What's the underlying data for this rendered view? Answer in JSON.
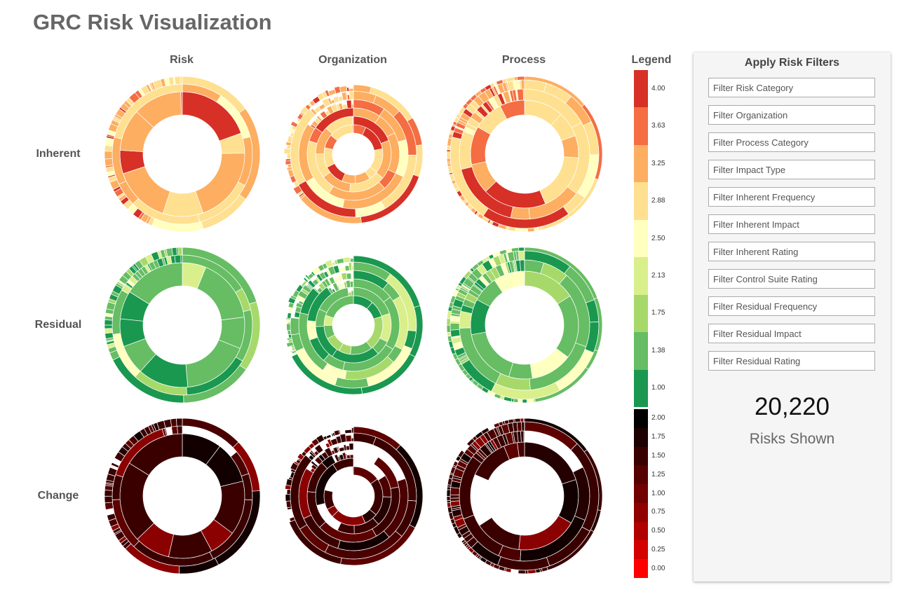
{
  "title": "GRC Risk Visualization",
  "columns": [
    {
      "label": "Risk"
    },
    {
      "label": "Organization"
    },
    {
      "label": "Process"
    }
  ],
  "rows": [
    {
      "label": "Inherent",
      "palette": [
        "#FDAE61",
        "#FDAE61",
        "#FDAE61",
        "#FEE090",
        "#FEE090",
        "#FEE090",
        "#F46D43",
        "#FFFFBF",
        "#D73027"
      ]
    },
    {
      "label": "Residual",
      "palette": [
        "#66BD63",
        "#66BD63",
        "#66BD63",
        "#66BD63",
        "#A6D96A",
        "#1A9850",
        "#1A9850",
        "#D9EF8B",
        "#FFFFBF"
      ]
    },
    {
      "label": "Change",
      "palette": [
        "#3A0000",
        "#3A0000",
        "#3A0000",
        "#4A0000",
        "#240000",
        "#5C0000",
        "#120000",
        "#FFFFFF",
        "#8B0000"
      ]
    }
  ],
  "legend": {
    "title": "Legend",
    "upper": [
      {
        "label": "4.00",
        "color": "#D73027"
      },
      {
        "label": "3.63",
        "color": "#F46D43"
      },
      {
        "label": "3.25",
        "color": "#FDAE61"
      },
      {
        "label": "2.88",
        "color": "#FEE090"
      },
      {
        "label": "2.50",
        "color": "#FFFFBF"
      },
      {
        "label": "2.13",
        "color": "#D9EF8B"
      },
      {
        "label": "1.75",
        "color": "#A6D96A"
      },
      {
        "label": "1.38",
        "color": "#66BD63"
      },
      {
        "label": "1.00",
        "color": "#1A9850"
      }
    ],
    "lower": [
      {
        "label": "2.00",
        "color": "#000000"
      },
      {
        "label": "1.75",
        "color": "#1F0000"
      },
      {
        "label": "1.50",
        "color": "#3A0000"
      },
      {
        "label": "1.25",
        "color": "#560000"
      },
      {
        "label": "1.00",
        "color": "#730000"
      },
      {
        "label": "0.75",
        "color": "#910000"
      },
      {
        "label": "0.50",
        "color": "#B00000"
      },
      {
        "label": "0.25",
        "color": "#D40000"
      },
      {
        "label": "0.00",
        "color": "#FF0000"
      }
    ]
  },
  "filters": {
    "title": "Apply Risk Filters",
    "placeholders": [
      "Filter Risk Category",
      "Filter Organization",
      "Filter Process Category",
      "Filter Impact Type",
      "Filter Inherent Frequency",
      "Filter Inherent Impact",
      "Filter Inherent Rating",
      "Filter Control Suite Rating",
      "Filter Residual Frequency",
      "Filter Residual Impact",
      "Filter Residual Rating"
    ],
    "count": "20,220",
    "count_label": "Risks Shown"
  }
}
